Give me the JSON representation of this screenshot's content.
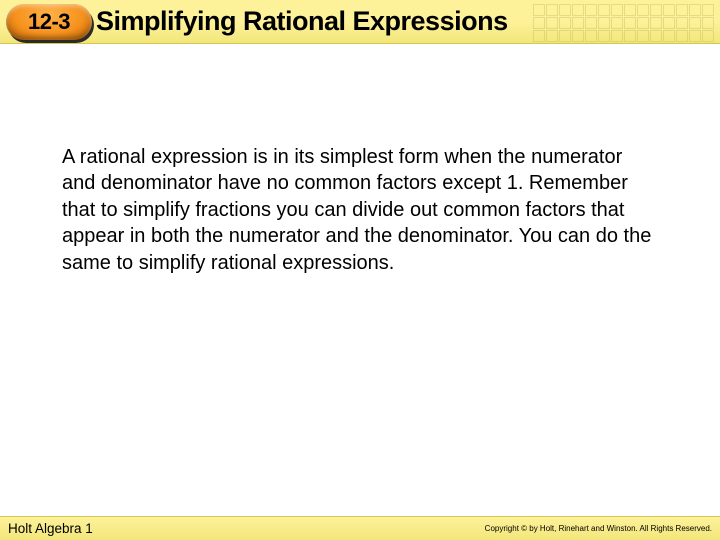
{
  "header": {
    "section_number": "12-3",
    "title": "Simplifying Rational Expressions"
  },
  "body": {
    "paragraph": "A rational expression is in its simplest form when the numerator and denominator have no common factors except 1. Remember that to simplify fractions you can divide out common factors that appear in both the numerator and the denominator. You can do the same to simplify rational expressions."
  },
  "footer": {
    "left": "Holt Algebra 1",
    "right": "Copyright © by Holt, Rinehart and Winston. All Rights Reserved."
  },
  "colors": {
    "header_bg_top": "#fdf29a",
    "header_bg_bottom": "#f2e67a",
    "lozenge_orange": "#f6921e",
    "text": "#000000",
    "page_bg": "#ffffff"
  }
}
